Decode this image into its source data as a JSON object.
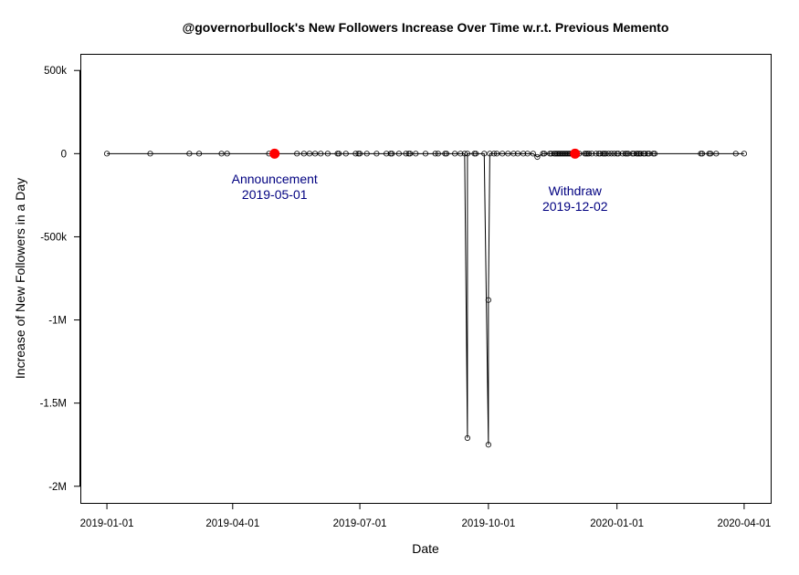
{
  "chart_data": {
    "type": "line",
    "title": "@governorbullock's New Followers Increase Over Time w.r.t. Previous Memento",
    "xlabel": "Date",
    "ylabel": "Increase of New Followers in a Day",
    "x_ticks": [
      "2019-01-01",
      "2019-04-01",
      "2019-07-01",
      "2019-10-01",
      "2020-01-01",
      "2020-04-01"
    ],
    "y_ticks": [
      {
        "value": 500000,
        "label": "500k"
      },
      {
        "value": 0,
        "label": "0"
      },
      {
        "value": -500000,
        "label": "-500k"
      },
      {
        "value": -1000000,
        "label": "-1M"
      },
      {
        "value": -1500000,
        "label": "-1.5M"
      },
      {
        "value": -2000000,
        "label": "-2M"
      }
    ],
    "xlim": [
      "2018-12-13",
      "2020-04-20"
    ],
    "ylim": [
      -2100000,
      600000
    ],
    "grid": false,
    "marker": "open-circle",
    "line_color": "#000000",
    "highlight_color": "#ff0000",
    "annotation_color": "#000080",
    "series": [
      {
        "x": [
          "2019-01-01",
          "2019-02-01",
          "2019-03-01",
          "2019-03-08",
          "2019-03-24",
          "2019-03-28",
          "2019-04-27",
          "2019-05-01",
          "2019-05-17",
          "2019-05-22",
          "2019-05-26",
          "2019-05-30",
          "2019-06-03",
          "2019-06-08",
          "2019-06-15",
          "2019-06-16",
          "2019-06-21",
          "2019-06-28",
          "2019-06-30",
          "2019-07-01",
          "2019-07-06",
          "2019-07-13",
          "2019-07-20",
          "2019-07-23",
          "2019-07-24",
          "2019-07-29",
          "2019-08-03",
          "2019-08-05",
          "2019-08-06",
          "2019-08-10",
          "2019-08-17",
          "2019-08-24",
          "2019-08-26",
          "2019-08-31",
          "2019-09-01",
          "2019-09-07",
          "2019-09-11",
          "2019-09-14",
          "2019-09-16",
          "2019-09-16",
          "2019-09-21",
          "2019-09-22",
          "2019-09-28",
          "2019-10-01",
          "2019-10-01",
          "2019-10-02",
          "2019-10-05",
          "2019-10-07",
          "2019-10-11",
          "2019-10-15",
          "2019-10-19",
          "2019-10-22",
          "2019-10-26",
          "2019-10-29",
          "2019-11-02",
          "2019-11-05",
          "2019-11-09",
          "2019-11-10",
          "2019-11-14",
          "2019-11-15",
          "2019-11-17",
          "2019-11-18",
          "2019-11-19",
          "2019-11-20",
          "2019-11-21",
          "2019-11-22",
          "2019-11-23",
          "2019-11-24",
          "2019-11-25",
          "2019-11-26",
          "2019-11-27",
          "2019-11-28",
          "2019-11-29",
          "2019-11-30",
          "2019-12-01",
          "2019-12-02",
          "2019-12-03",
          "2019-12-05",
          "2019-12-09",
          "2019-12-10",
          "2019-12-11",
          "2019-12-12",
          "2019-12-14",
          "2019-12-17",
          "2019-12-19",
          "2019-12-20",
          "2019-12-22",
          "2019-12-23",
          "2019-12-24",
          "2019-12-26",
          "2019-12-28",
          "2019-12-30",
          "2020-01-01",
          "2020-01-02",
          "2020-01-05",
          "2020-01-07",
          "2020-01-08",
          "2020-01-09",
          "2020-01-12",
          "2020-01-13",
          "2020-01-15",
          "2020-01-16",
          "2020-01-17",
          "2020-01-18",
          "2020-01-20",
          "2020-01-21",
          "2020-01-23",
          "2020-01-24",
          "2020-01-27",
          "2020-01-28",
          "2020-03-01",
          "2020-03-02",
          "2020-03-07",
          "2020-03-08",
          "2020-03-12",
          "2020-03-26",
          "2020-04-01"
        ],
        "y": [
          0,
          0,
          0,
          0,
          0,
          0,
          0,
          0,
          0,
          0,
          0,
          0,
          0,
          0,
          0,
          0,
          0,
          0,
          0,
          0,
          0,
          0,
          0,
          0,
          0,
          0,
          0,
          0,
          0,
          0,
          0,
          0,
          0,
          0,
          0,
          0,
          0,
          0,
          -1710000,
          0,
          0,
          0,
          0,
          -1750000,
          -880000,
          0,
          0,
          0,
          0,
          0,
          0,
          0,
          0,
          0,
          0,
          -20000,
          0,
          0,
          0,
          0,
          0,
          0,
          0,
          0,
          0,
          0,
          0,
          0,
          0,
          0,
          0,
          0,
          0,
          0,
          0,
          0,
          0,
          0,
          0,
          0,
          0,
          0,
          0,
          0,
          0,
          0,
          0,
          0,
          0,
          0,
          0,
          0,
          0,
          0,
          0,
          0,
          0,
          0,
          0,
          0,
          0,
          0,
          0,
          0,
          0,
          0,
          0,
          0,
          0,
          0,
          0,
          0,
          0,
          0,
          0,
          0,
          0
        ]
      }
    ],
    "highlights": [
      {
        "x": "2019-05-01",
        "y": 0
      },
      {
        "x": "2019-12-02",
        "y": 0
      }
    ],
    "annotations": [
      {
        "lines": [
          "Announcement",
          "2019-05-01"
        ],
        "x": "2019-05-01",
        "y": -180000
      },
      {
        "lines": [
          "Withdraw",
          "2019-12-02"
        ],
        "x": "2019-12-02",
        "y": -250000
      }
    ]
  }
}
